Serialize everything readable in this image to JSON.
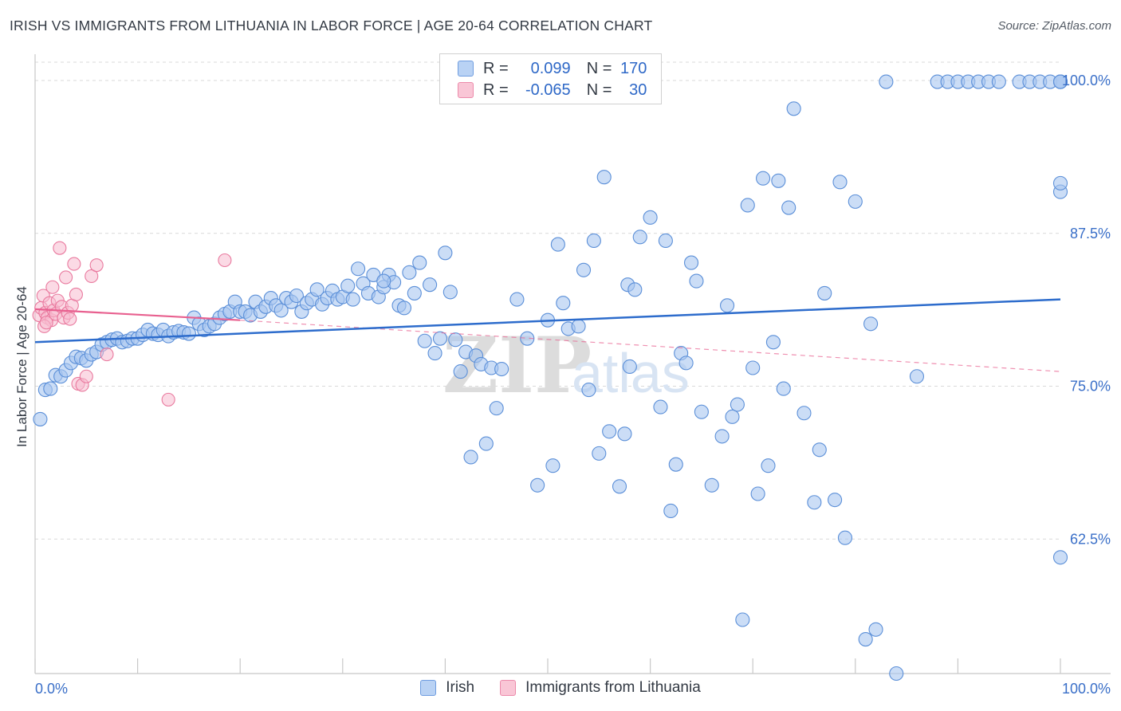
{
  "header": {
    "title": "IRISH VS IMMIGRANTS FROM LITHUANIA IN LABOR FORCE | AGE 20-64 CORRELATION CHART",
    "source": "Source: ZipAtlas.com"
  },
  "watermark": {
    "zip": "ZIP",
    "atlas": "atlas"
  },
  "legend_top": {
    "rows": [
      {
        "r_label": "R =",
        "r_value": "0.099",
        "n_label": "N =",
        "n_value": "170"
      },
      {
        "r_label": "R =",
        "r_value": "-0.065",
        "n_label": "N =",
        "n_value": "30"
      }
    ]
  },
  "legend_bottom": {
    "items": [
      "Irish",
      "Immigrants from Lithuania"
    ]
  },
  "colors": {
    "irish_fill": "#a9c6f0",
    "irish_stroke": "#5b8fd8",
    "irish_line": "#2d6ccc",
    "lith_fill": "#f7bcd0",
    "lith_stroke": "#e9799e",
    "lith_line": "#e8608f",
    "axis_text": "#3a6fc8",
    "grid": "#d9d9d9"
  },
  "chart_data": {
    "type": "scatter",
    "title": "IRISH VS IMMIGRANTS FROM LITHUANIA IN LABOR FORCE | AGE 20-64 CORRELATION CHART",
    "ylabel": "In Labor Force | Age 20-64",
    "xlabel": "",
    "xlim": [
      0,
      100
    ],
    "ylim": [
      51.5,
      101.5
    ],
    "x_tick_labels": [
      "0.0%",
      "100.0%"
    ],
    "y_ticks": [
      62.5,
      75.0,
      87.5,
      100.0
    ],
    "y_tick_labels": [
      "62.5%",
      "75.0%",
      "87.5%",
      "100.0%"
    ],
    "grid": true,
    "legend_position": "top-center",
    "series": [
      {
        "name": "Irish",
        "stats": {
          "R": 0.099,
          "N": 170
        },
        "trend": {
          "x": [
            0,
            100
          ],
          "y": [
            78.6,
            82.1
          ]
        },
        "points": [
          [
            0.5,
            72.3
          ],
          [
            1,
            74.7
          ],
          [
            1.5,
            74.8
          ],
          [
            2,
            75.9
          ],
          [
            2.5,
            75.8
          ],
          [
            3,
            76.3
          ],
          [
            3.5,
            76.9
          ],
          [
            4,
            77.4
          ],
          [
            4.5,
            77.3
          ],
          [
            5,
            77.1
          ],
          [
            5.5,
            77.6
          ],
          [
            6,
            77.8
          ],
          [
            6.5,
            78.4
          ],
          [
            7,
            78.6
          ],
          [
            7.5,
            78.8
          ],
          [
            8,
            78.9
          ],
          [
            8.5,
            78.6
          ],
          [
            9,
            78.7
          ],
          [
            9.5,
            78.9
          ],
          [
            10,
            78.9
          ],
          [
            10.5,
            79.2
          ],
          [
            11,
            79.6
          ],
          [
            11.5,
            79.3
          ],
          [
            12,
            79.2
          ],
          [
            12.5,
            79.6
          ],
          [
            13,
            79.1
          ],
          [
            13.5,
            79.4
          ],
          [
            14,
            79.5
          ],
          [
            14.5,
            79.4
          ],
          [
            15,
            79.3
          ],
          [
            15.5,
            80.6
          ],
          [
            16,
            80.1
          ],
          [
            16.5,
            79.6
          ],
          [
            17,
            79.9
          ],
          [
            17.5,
            80.1
          ],
          [
            18,
            80.6
          ],
          [
            18.5,
            80.9
          ],
          [
            19,
            81.1
          ],
          [
            19.5,
            81.9
          ],
          [
            20,
            81.1
          ],
          [
            20.5,
            81.1
          ],
          [
            21,
            80.8
          ],
          [
            21.5,
            81.9
          ],
          [
            22,
            81.1
          ],
          [
            22.5,
            81.5
          ],
          [
            23,
            82.2
          ],
          [
            23.5,
            81.6
          ],
          [
            24,
            81.2
          ],
          [
            24.5,
            82.2
          ],
          [
            25,
            81.9
          ],
          [
            25.5,
            82.4
          ],
          [
            26,
            81.1
          ],
          [
            26.5,
            81.8
          ],
          [
            27,
            82.1
          ],
          [
            27.5,
            82.9
          ],
          [
            28,
            81.7
          ],
          [
            28.5,
            82.2
          ],
          [
            29,
            82.8
          ],
          [
            29.5,
            82.1
          ],
          [
            30,
            82.3
          ],
          [
            30.5,
            83.2
          ],
          [
            31,
            82.1
          ],
          [
            31.5,
            84.6
          ],
          [
            32,
            83.4
          ],
          [
            32.5,
            82.6
          ],
          [
            33,
            84.1
          ],
          [
            33.5,
            82.3
          ],
          [
            34,
            83.1
          ],
          [
            34.5,
            84.1
          ],
          [
            35,
            83.5
          ],
          [
            34,
            83.6
          ],
          [
            35.5,
            81.6
          ],
          [
            36,
            81.4
          ],
          [
            36.5,
            84.3
          ],
          [
            37,
            82.6
          ],
          [
            37.5,
            85.1
          ],
          [
            38,
            78.7
          ],
          [
            38.5,
            83.3
          ],
          [
            39,
            77.7
          ],
          [
            39.5,
            78.9
          ],
          [
            40,
            85.9
          ],
          [
            40.5,
            82.7
          ],
          [
            41,
            78.8
          ],
          [
            41.5,
            76.2
          ],
          [
            42,
            77.8
          ],
          [
            42.5,
            69.2
          ],
          [
            43,
            77.5
          ],
          [
            43.5,
            76.8
          ],
          [
            44,
            70.3
          ],
          [
            44.5,
            76.5
          ],
          [
            45,
            73.2
          ],
          [
            45.5,
            76.4
          ],
          [
            47,
            82.1
          ],
          [
            48,
            78.9
          ],
          [
            49,
            66.9
          ],
          [
            50,
            80.4
          ],
          [
            50.5,
            68.5
          ],
          [
            51,
            86.6
          ],
          [
            51.5,
            81.8
          ],
          [
            52,
            79.7
          ],
          [
            53,
            79.9
          ],
          [
            53.5,
            84.5
          ],
          [
            54,
            74.7
          ],
          [
            54.5,
            86.9
          ],
          [
            55,
            69.5
          ],
          [
            55.5,
            92.1
          ],
          [
            56,
            71.3
          ],
          [
            57,
            66.8
          ],
          [
            57.5,
            71.1
          ],
          [
            57.8,
            83.3
          ],
          [
            58,
            76.6
          ],
          [
            58.5,
            82.9
          ],
          [
            59,
            87.2
          ],
          [
            60,
            88.8
          ],
          [
            61,
            73.3
          ],
          [
            61.5,
            86.9
          ],
          [
            62,
            64.8
          ],
          [
            62.5,
            68.6
          ],
          [
            63,
            77.7
          ],
          [
            63.5,
            76.9
          ],
          [
            64,
            85.1
          ],
          [
            64.5,
            83.6
          ],
          [
            65,
            72.9
          ],
          [
            66,
            66.9
          ],
          [
            67,
            70.9
          ],
          [
            67.5,
            81.6
          ],
          [
            68,
            72.5
          ],
          [
            68.5,
            73.5
          ],
          [
            69,
            55.9
          ],
          [
            69.5,
            89.8
          ],
          [
            70,
            76.5
          ],
          [
            70.5,
            66.2
          ],
          [
            71,
            92.0
          ],
          [
            71.5,
            68.5
          ],
          [
            72,
            78.6
          ],
          [
            72.5,
            91.8
          ],
          [
            73,
            74.8
          ],
          [
            73.5,
            89.6
          ],
          [
            74,
            97.7
          ],
          [
            75,
            72.8
          ],
          [
            76,
            65.5
          ],
          [
            76.5,
            69.8
          ],
          [
            77,
            82.6
          ],
          [
            78,
            65.7
          ],
          [
            78.5,
            91.7
          ],
          [
            79,
            62.6
          ],
          [
            80,
            90.1
          ],
          [
            81,
            54.3
          ],
          [
            81.5,
            80.1
          ],
          [
            82,
            55.1
          ],
          [
            83,
            99.9
          ],
          [
            84,
            51.5
          ],
          [
            86,
            75.8
          ],
          [
            88,
            99.9
          ],
          [
            89,
            99.9
          ],
          [
            90,
            99.9
          ],
          [
            91,
            99.9
          ],
          [
            92,
            99.9
          ],
          [
            93,
            99.9
          ],
          [
            94,
            99.9
          ],
          [
            96,
            99.9
          ],
          [
            97,
            99.9
          ],
          [
            98,
            99.9
          ],
          [
            99,
            99.9
          ],
          [
            100,
            99.9
          ],
          [
            100,
            90.9
          ],
          [
            100,
            91.6
          ],
          [
            100,
            99.9
          ],
          [
            100,
            61.0
          ],
          [
            100,
            99.9
          ]
        ]
      },
      {
        "name": "Immigrants from Lithuania",
        "stats": {
          "R": -0.065,
          "N": 30
        },
        "trend": {
          "x": [
            0,
            20
          ],
          "y": [
            81.3,
            80.4
          ]
        },
        "trend_extended": {
          "x": [
            20,
            100
          ],
          "y": [
            80.4,
            76.2
          ]
        },
        "points": [
          [
            0.4,
            80.8
          ],
          [
            0.6,
            81.4
          ],
          [
            0.8,
            82.4
          ],
          [
            1.0,
            81.0
          ],
          [
            1.2,
            80.6
          ],
          [
            1.4,
            81.8
          ],
          [
            1.6,
            80.4
          ],
          [
            1.8,
            81.2
          ],
          [
            2.0,
            80.9
          ],
          [
            2.2,
            82.0
          ],
          [
            2.4,
            86.3
          ],
          [
            2.6,
            81.5
          ],
          [
            2.8,
            80.6
          ],
          [
            3.0,
            83.9
          ],
          [
            3.2,
            81.0
          ],
          [
            3.4,
            80.5
          ],
          [
            3.6,
            81.6
          ],
          [
            3.8,
            85.0
          ],
          [
            4.0,
            82.5
          ],
          [
            4.2,
            75.2
          ],
          [
            4.6,
            75.1
          ],
          [
            5.0,
            75.8
          ],
          [
            5.5,
            84.0
          ],
          [
            6.0,
            84.9
          ],
          [
            7.0,
            77.6
          ],
          [
            13.0,
            73.9
          ],
          [
            18.5,
            85.3
          ],
          [
            0.9,
            79.9
          ],
          [
            1.1,
            80.2
          ],
          [
            1.7,
            83.1
          ]
        ]
      }
    ]
  }
}
